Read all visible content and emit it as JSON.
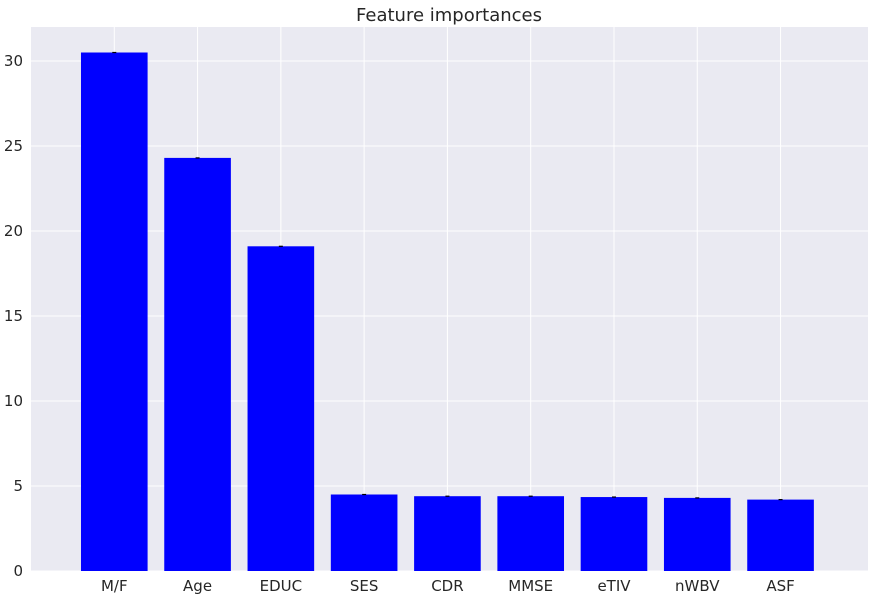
{
  "chart_data": {
    "type": "bar",
    "title": "Feature importances",
    "xlabel": "",
    "ylabel": "",
    "categories": [
      "M/F",
      "Age",
      "EDUC",
      "SES",
      "CDR",
      "MMSE",
      "eTIV",
      "nWBV",
      "ASF"
    ],
    "values": [
      30.5,
      24.3,
      19.1,
      4.5,
      4.4,
      4.4,
      4.35,
      4.3,
      4.2
    ],
    "ylim": [
      0,
      32
    ],
    "yticks": [
      0,
      5,
      10,
      15,
      20,
      25,
      30
    ],
    "grid": true,
    "legend": "none",
    "colors": {
      "bar": "#0000ff",
      "plot_background": "#eaeaf2",
      "grid": "#ffffff",
      "text": "#262626",
      "error_bar": "#000000"
    }
  }
}
